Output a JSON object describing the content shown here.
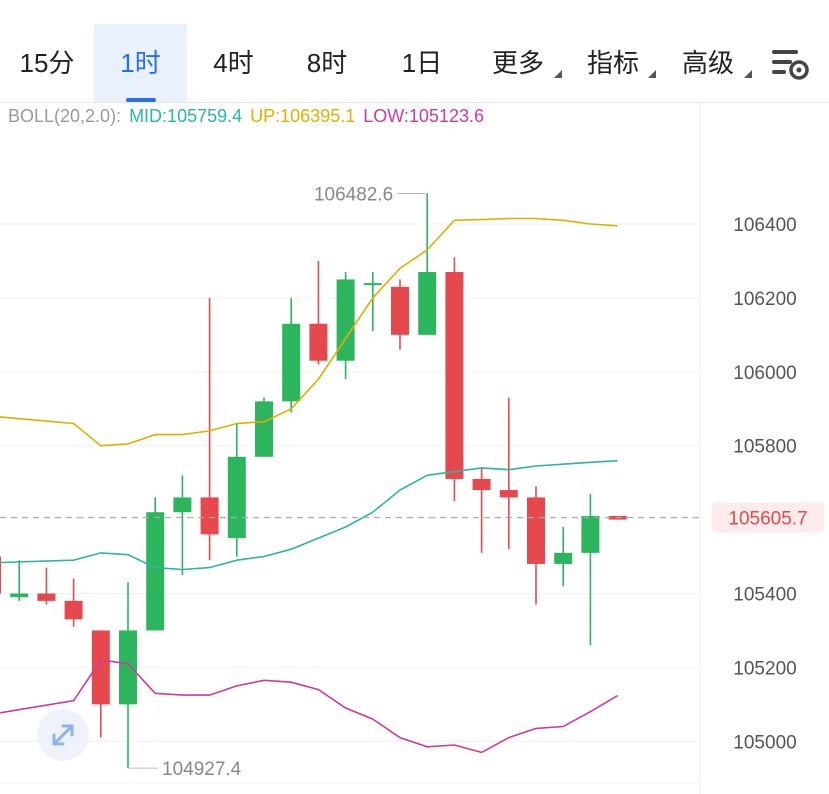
{
  "tabs": [
    {
      "label": "15分",
      "active": false,
      "dropdown": false
    },
    {
      "label": "1时",
      "active": true,
      "dropdown": false
    },
    {
      "label": "4时",
      "active": false,
      "dropdown": false
    },
    {
      "label": "8时",
      "active": false,
      "dropdown": false
    },
    {
      "label": "1日",
      "active": false,
      "dropdown": false
    },
    {
      "label": "更多",
      "active": false,
      "dropdown": true
    },
    {
      "label": "指标",
      "active": false,
      "dropdown": true
    },
    {
      "label": "高级",
      "active": false,
      "dropdown": true
    }
  ],
  "settings_icon": "chart-settings-icon",
  "indicator": {
    "name": "BOLL(20,2.0):",
    "mid": "MID:105759.4",
    "up": "UP:106395.1",
    "low": "LOW:105123.6"
  },
  "colors": {
    "up_candle": "#2db55d",
    "down_candle": "#e5484d",
    "boll_mid": "#2ab6a3",
    "boll_up": "#e2ad00",
    "boll_low": "#cc3aa0",
    "accent": "#2a6fe6"
  },
  "chart_data": {
    "type": "candlestick",
    "y_ticks": [
      "106400",
      "106200",
      "106000",
      "105800",
      "105400",
      "105200",
      "105000"
    ],
    "ylim": [
      104900,
      106600
    ],
    "current_price": 105605.7,
    "current_price_label": "105605.7",
    "max_label": "106482.6",
    "min_label": "104927.4",
    "candles": [
      {
        "o": 105500,
        "h": 105500,
        "l": 105400,
        "c": 105400
      },
      {
        "o": 105390,
        "h": 105490,
        "l": 105380,
        "c": 105400
      },
      {
        "o": 105400,
        "h": 105470,
        "l": 105370,
        "c": 105380
      },
      {
        "o": 105380,
        "h": 105440,
        "l": 105310,
        "c": 105330
      },
      {
        "o": 105300,
        "h": 105300,
        "l": 105010,
        "c": 105100
      },
      {
        "o": 105100,
        "h": 105430,
        "l": 104927.4,
        "c": 105300
      },
      {
        "o": 105300,
        "h": 105660,
        "l": 105300,
        "c": 105620
      },
      {
        "o": 105620,
        "h": 105720,
        "l": 105450,
        "c": 105660
      },
      {
        "o": 105660,
        "h": 106200,
        "l": 105490,
        "c": 105560
      },
      {
        "o": 105550,
        "h": 105860,
        "l": 105500,
        "c": 105770
      },
      {
        "o": 105770,
        "h": 105930,
        "l": 105770,
        "c": 105920
      },
      {
        "o": 105920,
        "h": 106200,
        "l": 105890,
        "c": 106130
      },
      {
        "o": 106130,
        "h": 106300,
        "l": 106020,
        "c": 106030
      },
      {
        "o": 106030,
        "h": 106270,
        "l": 105980,
        "c": 106250
      },
      {
        "o": 106240,
        "h": 106270,
        "l": 106110,
        "c": 106240
      },
      {
        "o": 106230,
        "h": 106250,
        "l": 106060,
        "c": 106100
      },
      {
        "o": 106100,
        "h": 106482.6,
        "l": 106100,
        "c": 106270
      },
      {
        "o": 106270,
        "h": 106310,
        "l": 105650,
        "c": 105710
      },
      {
        "o": 105710,
        "h": 105740,
        "l": 105510,
        "c": 105680
      },
      {
        "o": 105680,
        "h": 105930,
        "l": 105520,
        "c": 105660
      },
      {
        "o": 105660,
        "h": 105690,
        "l": 105370,
        "c": 105480
      },
      {
        "o": 105480,
        "h": 105580,
        "l": 105420,
        "c": 105510
      },
      {
        "o": 105510,
        "h": 105670,
        "l": 105260,
        "c": 105610
      },
      {
        "o": 105610,
        "h": 105610,
        "l": 105600,
        "c": 105600
      }
    ],
    "boll_up": [
      105860,
      105800,
      105805,
      105830,
      105830,
      105840,
      105860,
      105865,
      105900,
      105980,
      106090,
      106200,
      106280,
      106330,
      106410,
      106412,
      106415,
      106415,
      106410,
      106400,
      106395.1
    ],
    "boll_mid": [
      105490,
      105510,
      105505,
      105470,
      105465,
      105470,
      105490,
      105500,
      105520,
      105550,
      105580,
      105620,
      105680,
      105720,
      105730,
      105740,
      105735,
      105745,
      105750,
      105755,
      105759.4
    ],
    "boll_low": [
      105110,
      105220,
      105210,
      105130,
      105125,
      105125,
      105150,
      105165,
      105160,
      105140,
      105090,
      105060,
      105010,
      104985,
      104990,
      104970,
      105010,
      105035,
      105040,
      105080,
      105123.6
    ]
  }
}
